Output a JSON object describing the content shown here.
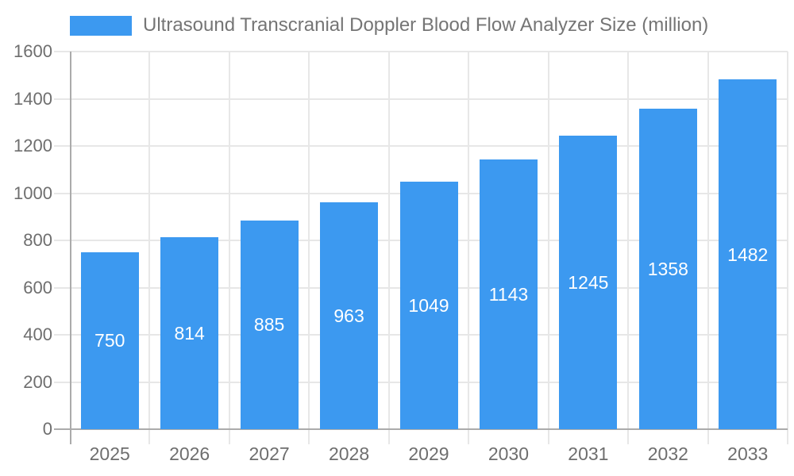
{
  "chart_data": {
    "type": "bar",
    "title": "Ultrasound Transcranial Doppler Blood Flow Analyzer Size (million)",
    "categories": [
      "2025",
      "2026",
      "2027",
      "2028",
      "2029",
      "2030",
      "2031",
      "2032",
      "2033"
    ],
    "values": [
      750,
      814,
      885,
      963,
      1049,
      1143,
      1245,
      1358,
      1482
    ],
    "xlabel": "",
    "ylabel": "",
    "ylim": [
      0,
      1600
    ],
    "ytick_step": 200,
    "y_tick_labels": [
      "0",
      "200",
      "400",
      "600",
      "800",
      "1000",
      "1200",
      "1400",
      "1600"
    ],
    "grid": true,
    "legend_position": "top-left",
    "value_labels_shown_inside_bars": true
  },
  "legend": {
    "label": "Ultrasound Transcranial Doppler Blood Flow Analyzer Size (million)"
  },
  "colors": {
    "bar": "#3C99F0",
    "grid": "#E7E7E7",
    "axis": "#ABABAB",
    "y_tick_label": "#6E6E6E",
    "x_tick_label": "#6E6E6E",
    "legend_text": "#757575",
    "value_label": "#FFFFFF",
    "background": "#FFFFFF"
  }
}
